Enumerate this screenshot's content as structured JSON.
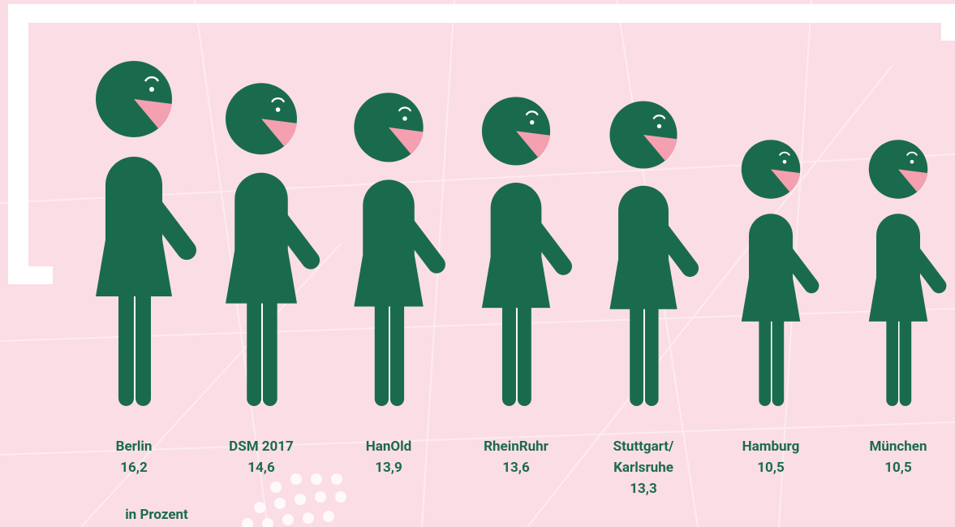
{
  "chart_data": {
    "type": "pictograph",
    "categories": [
      "Berlin",
      "DSM 2017",
      "HanOld",
      "RheinRuhr",
      "Stuttgart/\nKarlsruhe",
      "Hamburg",
      "München"
    ],
    "values": [
      16.2,
      14.6,
      13.9,
      13.6,
      13.3,
      10.5,
      10.5
    ],
    "value_labels": [
      "16,2",
      "14,6",
      "13,9",
      "13,6",
      "13,3",
      "10,5",
      "10,5"
    ],
    "color": "#1a6b4e",
    "accent_color": "#f4a0b0",
    "note": "in Prozent"
  }
}
